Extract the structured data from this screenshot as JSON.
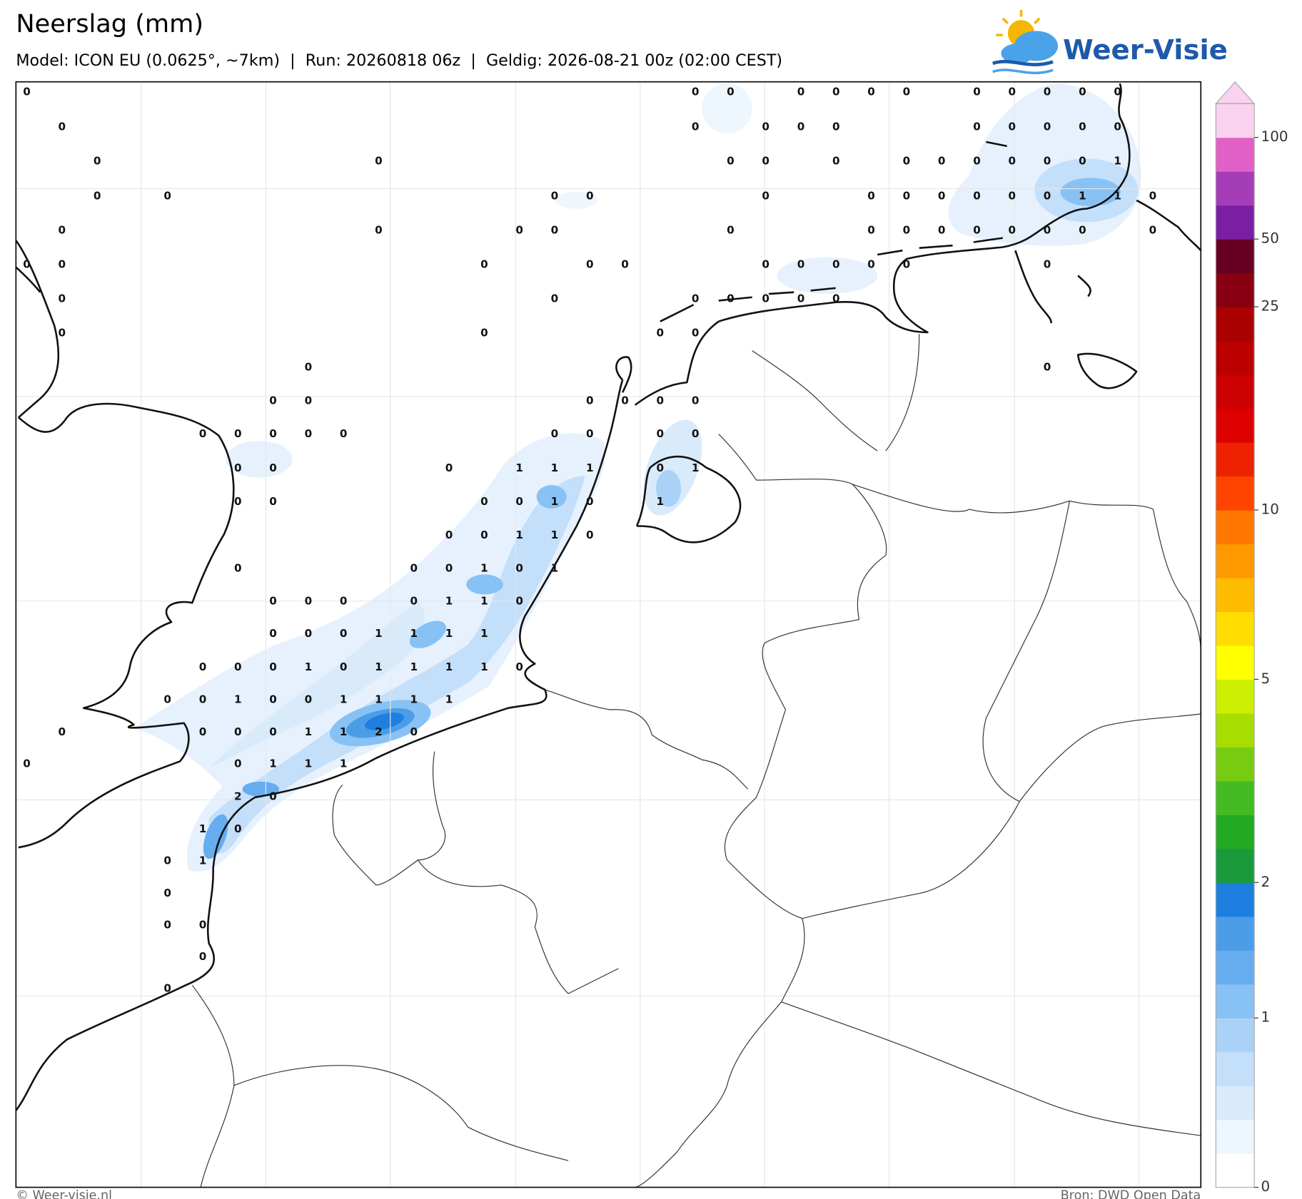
{
  "header": {
    "title": "Neerslag (mm)",
    "subtitle": "Model: ICON EU (0.0625°, ~7km)  |  Run: 20260818 06z  |  Geldig: 2026-08-21 00z (02:00 CEST)",
    "logo": "Weer-Visie"
  },
  "map": {
    "grid_values": [
      [
        0,
        null,
        null,
        null,
        null,
        null,
        null,
        null,
        null,
        null,
        null,
        null,
        null,
        null,
        null,
        null,
        null,
        null,
        null,
        0,
        0,
        null,
        0,
        0,
        0,
        0,
        null,
        0,
        0,
        0,
        0,
        0
      ],
      [
        null,
        0,
        null,
        null,
        null,
        null,
        null,
        null,
        null,
        null,
        null,
        null,
        null,
        null,
        null,
        null,
        null,
        null,
        null,
        0,
        null,
        0,
        0,
        0,
        null,
        null,
        null,
        0,
        0,
        0,
        0,
        0
      ],
      [
        null,
        null,
        0,
        null,
        null,
        null,
        null,
        null,
        null,
        null,
        0,
        null,
        null,
        null,
        null,
        null,
        null,
        null,
        null,
        null,
        0,
        0,
        null,
        0,
        null,
        0,
        0,
        0,
        0,
        0,
        0,
        1
      ],
      [
        null,
        null,
        0,
        null,
        0,
        null,
        null,
        null,
        null,
        null,
        null,
        null,
        null,
        null,
        null,
        0,
        0,
        null,
        null,
        null,
        null,
        0,
        null,
        null,
        0,
        0,
        0,
        0,
        0,
        0,
        1,
        1,
        0
      ],
      [
        null,
        0,
        null,
        null,
        null,
        null,
        null,
        null,
        null,
        null,
        0,
        null,
        null,
        null,
        0,
        0,
        null,
        null,
        null,
        null,
        0,
        null,
        null,
        null,
        0,
        0,
        0,
        0,
        0,
        0,
        0,
        null,
        0
      ],
      [
        0,
        0,
        null,
        null,
        null,
        null,
        null,
        null,
        null,
        null,
        null,
        null,
        null,
        0,
        null,
        null,
        0,
        0,
        null,
        null,
        null,
        0,
        0,
        0,
        0,
        0,
        null,
        null,
        null,
        0
      ],
      [
        null,
        0,
        null,
        null,
        null,
        null,
        null,
        null,
        null,
        null,
        null,
        null,
        null,
        null,
        null,
        0,
        null,
        null,
        null,
        0,
        0,
        0,
        0,
        0
      ],
      [
        null,
        0,
        null,
        null,
        null,
        null,
        null,
        null,
        null,
        null,
        null,
        null,
        null,
        0,
        null,
        null,
        null,
        null,
        0,
        0
      ],
      [
        null,
        null,
        null,
        null,
        null,
        null,
        null,
        null,
        0,
        null,
        null,
        null,
        null,
        null,
        null,
        null,
        null,
        null,
        null,
        null,
        null,
        null,
        null,
        null,
        null,
        null,
        null,
        null,
        null,
        0
      ],
      [
        null,
        null,
        null,
        null,
        null,
        null,
        null,
        0,
        0,
        null,
        null,
        null,
        null,
        null,
        null,
        null,
        0,
        0,
        0,
        0
      ],
      [
        null,
        null,
        null,
        null,
        null,
        0,
        0,
        0,
        0,
        0,
        null,
        null,
        null,
        null,
        null,
        0,
        0,
        null,
        0,
        0
      ],
      [
        null,
        null,
        null,
        null,
        null,
        null,
        0,
        0,
        null,
        null,
        null,
        null,
        0,
        null,
        1,
        1,
        1,
        null,
        0,
        1
      ],
      [
        null,
        null,
        null,
        null,
        null,
        null,
        0,
        0,
        null,
        null,
        null,
        null,
        null,
        0,
        0,
        1,
        0,
        null,
        1
      ],
      [
        null,
        null,
        null,
        null,
        null,
        null,
        null,
        null,
        null,
        null,
        null,
        null,
        0,
        0,
        1,
        1,
        0
      ],
      [
        null,
        null,
        null,
        null,
        null,
        null,
        0,
        null,
        null,
        null,
        null,
        0,
        0,
        1,
        0,
        1
      ],
      [
        null,
        null,
        null,
        null,
        null,
        null,
        null,
        0,
        0,
        0,
        null,
        0,
        1,
        1,
        0
      ],
      [
        null,
        null,
        null,
        null,
        null,
        null,
        null,
        0,
        0,
        0,
        1,
        1,
        1,
        1
      ],
      [
        null,
        null,
        null,
        null,
        null,
        0,
        0,
        0,
        1,
        0,
        1,
        1,
        1,
        1,
        0
      ],
      [
        null,
        null,
        null,
        null,
        0,
        0,
        1,
        0,
        0,
        1,
        1,
        1,
        1
      ],
      [
        null,
        0,
        null,
        null,
        null,
        0,
        0,
        0,
        1,
        1,
        2,
        0
      ],
      [
        0,
        null,
        null,
        null,
        null,
        null,
        0,
        1,
        1,
        1
      ],
      [
        null,
        null,
        null,
        null,
        null,
        null,
        2,
        0
      ],
      [
        null,
        null,
        null,
        null,
        null,
        1,
        0
      ],
      [
        null,
        null,
        null,
        null,
        0,
        1
      ],
      [
        null,
        null,
        null,
        null,
        0
      ],
      [
        null,
        null,
        null,
        null,
        0,
        0
      ],
      [
        null,
        null,
        null,
        null,
        null,
        0
      ],
      [
        null,
        null,
        null,
        null,
        0
      ]
    ]
  },
  "colorbar": {
    "ticks": [
      0,
      1,
      2,
      5,
      10,
      25,
      50,
      100
    ],
    "colors": [
      "#ffffff",
      "#eef6fe",
      "#d9eafb",
      "#c3dffa",
      "#aad2f8",
      "#88c1f4",
      "#66adef",
      "#4c9de8",
      "#1f7fe0",
      "#1a9a3a",
      "#23aa23",
      "#44bb22",
      "#77cc11",
      "#a8dd00",
      "#ccee00",
      "#ffff00",
      "#ffdd00",
      "#ffbb00",
      "#ff9900",
      "#ff7700",
      "#ff4400",
      "#ee2200",
      "#dd0000",
      "#cc0000",
      "#bb0000",
      "#aa0000",
      "#880011",
      "#660022",
      "#7b1fa2",
      "#a63db8",
      "#e060c8",
      "#f9d2ef"
    ]
  },
  "footer": {
    "left": "© Weer-visie.nl",
    "right": "Bron: DWD Open Data"
  }
}
